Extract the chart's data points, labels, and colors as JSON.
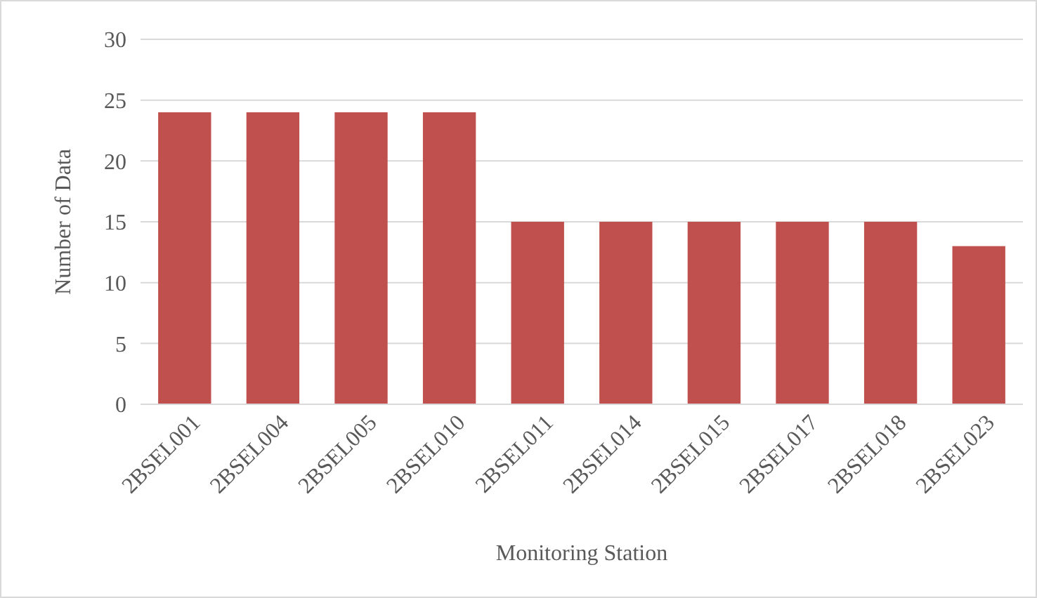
{
  "chart_data": {
    "type": "bar",
    "xlabel": "Monitoring Station",
    "ylabel": "Number of Data",
    "categories": [
      "2BSEL001",
      "2BSEL004",
      "2BSEL005",
      "2BSEL010",
      "2BSEL011",
      "2BSEL014",
      "2BSEL015",
      "2BSEL017",
      "2BSEL018",
      "2BSEL023"
    ],
    "values": [
      24,
      24,
      24,
      24,
      15,
      15,
      15,
      15,
      15,
      13
    ],
    "color": "#c0504d",
    "ylim": [
      0,
      30
    ],
    "yticks": [
      0,
      5,
      10,
      15,
      20,
      25,
      30
    ],
    "grid": "y"
  }
}
